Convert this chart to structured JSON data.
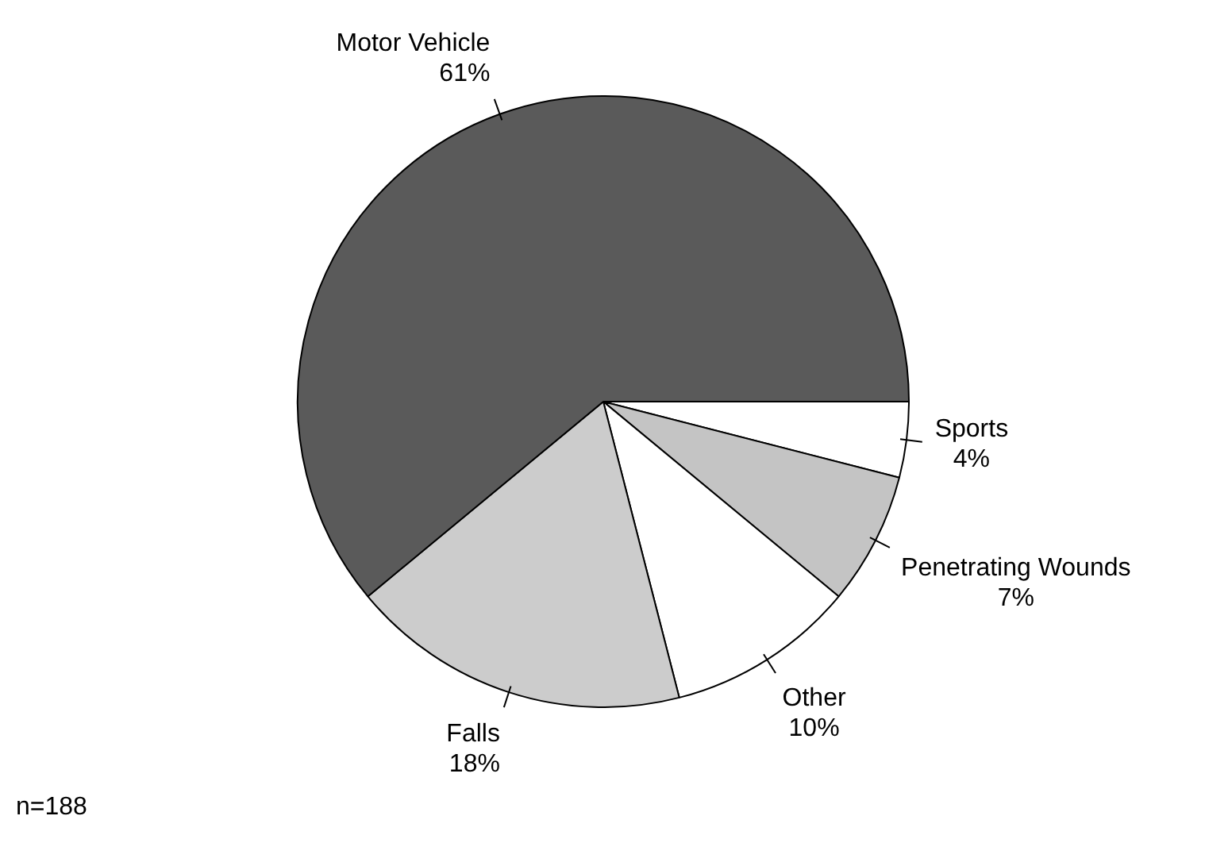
{
  "chart_data": {
    "type": "pie",
    "categories": [
      "Sports",
      "Penetrating Wounds",
      "Other",
      "Falls",
      "Motor Vehicle"
    ],
    "values": [
      4,
      7,
      10,
      18,
      61
    ],
    "colors": [
      "#ffffff",
      "#c4c4c4",
      "#ffffff",
      "#cccccc",
      "#5a5a5a"
    ],
    "value_labels": [
      "4%",
      "7%",
      "10%",
      "18%",
      "61%"
    ],
    "legend": false,
    "annotations": [
      "n=188"
    ]
  }
}
